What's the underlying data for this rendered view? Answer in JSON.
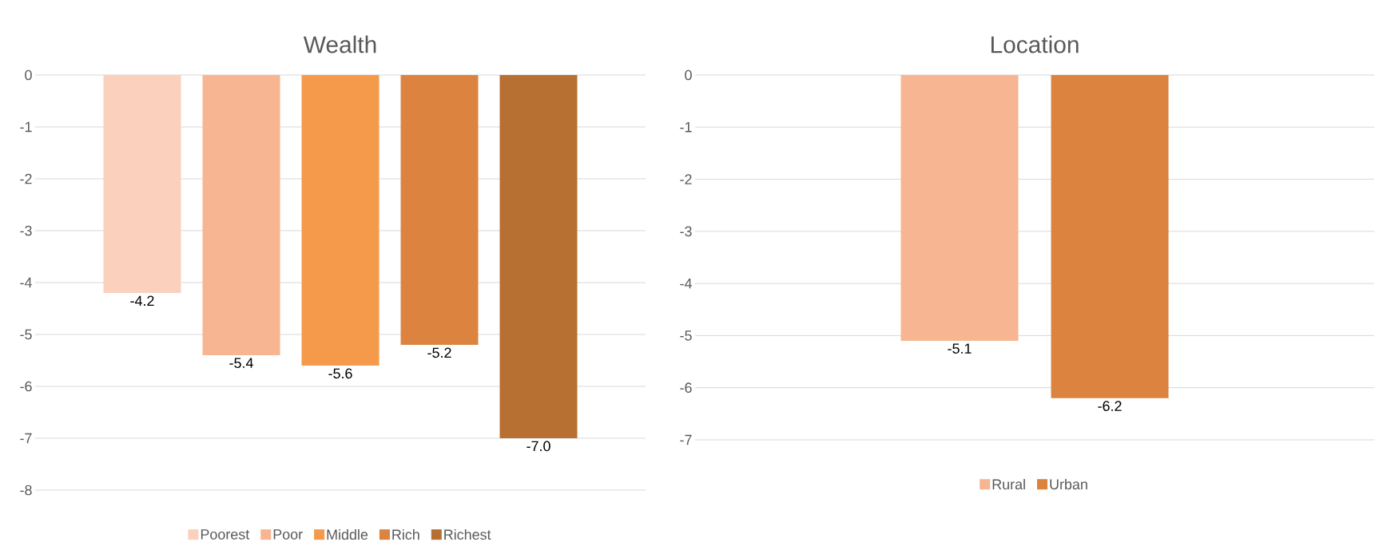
{
  "chart_data": [
    {
      "type": "bar",
      "title": "Wealth",
      "categories": [
        null
      ],
      "ylim": [
        -8,
        0
      ],
      "yticks": [
        -8,
        -7,
        -6,
        -5,
        -4,
        -3,
        -2,
        -1,
        0
      ],
      "grid": "y",
      "legend": "bottom",
      "series": [
        {
          "name": "Poorest",
          "color": "#fbd0bc",
          "values": [
            -4.2
          ],
          "value_labels": [
            "-4.2"
          ]
        },
        {
          "name": "Poor",
          "color": "#f8b592",
          "values": [
            -5.4
          ],
          "value_labels": [
            "-5.4"
          ]
        },
        {
          "name": "Middle",
          "color": "#f59a4a",
          "values": [
            -5.6
          ],
          "value_labels": [
            "-5.6"
          ]
        },
        {
          "name": "Rich",
          "color": "#dc833f",
          "values": [
            -5.2
          ],
          "value_labels": [
            "-5.2"
          ]
        },
        {
          "name": "Richest",
          "color": "#b87032",
          "values": [
            -7.0
          ],
          "value_labels": [
            "-7.0"
          ]
        }
      ]
    },
    {
      "type": "bar",
      "title": "Location",
      "categories": [
        null
      ],
      "ylim": [
        -7,
        0
      ],
      "yticks": [
        -7,
        -6,
        -5,
        -4,
        -3,
        -2,
        -1,
        0
      ],
      "grid": "y",
      "legend": "bottom",
      "series": [
        {
          "name": "Rural",
          "color": "#f8b592",
          "values": [
            -5.1
          ],
          "value_labels": [
            "-5.1"
          ]
        },
        {
          "name": "Urban",
          "color": "#dc833f",
          "values": [
            -6.2
          ],
          "value_labels": [
            "-6.2"
          ]
        }
      ]
    }
  ]
}
